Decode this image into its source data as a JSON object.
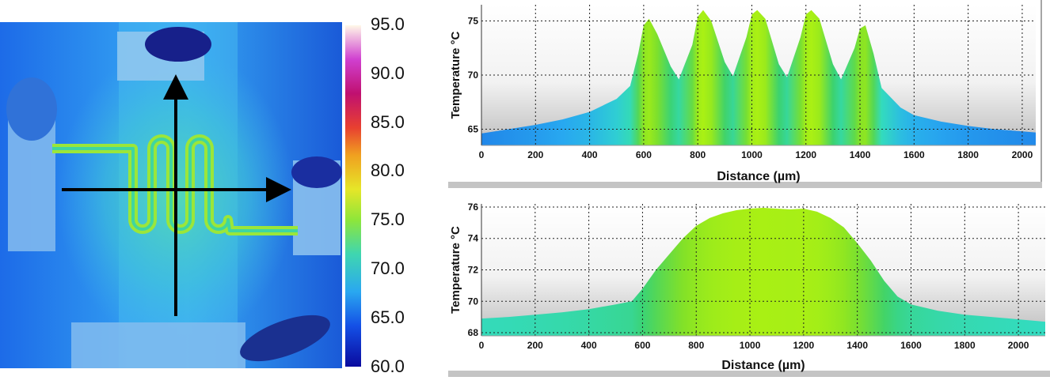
{
  "colorbar": {
    "labels": [
      "95.0",
      "90.0",
      "85.0",
      "80.0",
      "75.0",
      "70.0",
      "65.0",
      "60.0"
    ]
  },
  "chart_data": [
    {
      "type": "area",
      "xlabel": "Distance (µm)",
      "ylabel": "Temperature °C",
      "xlim": [
        0,
        2050
      ],
      "ylim": [
        63.5,
        76.5
      ],
      "xticks": [
        0,
        200,
        400,
        600,
        800,
        1000,
        1200,
        1400,
        1600,
        1800,
        2000
      ],
      "yticks": [
        65,
        70,
        75
      ],
      "grid": true,
      "x": [
        0,
        100,
        200,
        300,
        400,
        500,
        550,
        580,
        600,
        620,
        650,
        700,
        730,
        780,
        800,
        820,
        850,
        900,
        930,
        980,
        1000,
        1020,
        1050,
        1100,
        1130,
        1180,
        1200,
        1220,
        1250,
        1300,
        1330,
        1380,
        1400,
        1420,
        1450,
        1480,
        1550,
        1600,
        1700,
        1800,
        1900,
        2000,
        2050
      ],
      "values": [
        64.6,
        65.0,
        65.4,
        65.9,
        66.6,
        67.8,
        69.0,
        72.0,
        74.6,
        75.2,
        73.8,
        70.8,
        69.6,
        72.8,
        75.4,
        76.0,
        75.0,
        71.2,
        69.9,
        73.5,
        75.6,
        76.0,
        75.2,
        71.0,
        69.8,
        73.5,
        75.6,
        76.0,
        75.2,
        71.0,
        69.6,
        72.5,
        74.3,
        74.6,
        72.0,
        68.8,
        67.0,
        66.3,
        65.7,
        65.3,
        65.0,
        64.8,
        64.7
      ]
    },
    {
      "type": "area",
      "xlabel": "Distance (µm)",
      "ylabel": "Temperature °C",
      "xlim": [
        0,
        2100
      ],
      "ylim": [
        67.8,
        76.2
      ],
      "xticks": [
        0,
        200,
        400,
        600,
        800,
        1000,
        1200,
        1400,
        1600,
        1800,
        2000
      ],
      "yticks": [
        68,
        70,
        72,
        74,
        76
      ],
      "grid": true,
      "x": [
        0,
        100,
        200,
        300,
        400,
        500,
        560,
        600,
        650,
        700,
        750,
        800,
        850,
        900,
        950,
        1000,
        1050,
        1100,
        1150,
        1200,
        1250,
        1300,
        1350,
        1400,
        1450,
        1500,
        1550,
        1600,
        1700,
        1800,
        1900,
        2000,
        2100
      ],
      "values": [
        68.9,
        69.0,
        69.15,
        69.3,
        69.5,
        69.8,
        70.0,
        70.8,
        72.0,
        73.0,
        74.0,
        74.8,
        75.3,
        75.6,
        75.8,
        75.9,
        75.95,
        75.9,
        75.85,
        75.9,
        75.7,
        75.3,
        74.7,
        73.7,
        72.6,
        71.3,
        70.3,
        69.8,
        69.4,
        69.15,
        69.0,
        68.85,
        68.7
      ]
    }
  ]
}
